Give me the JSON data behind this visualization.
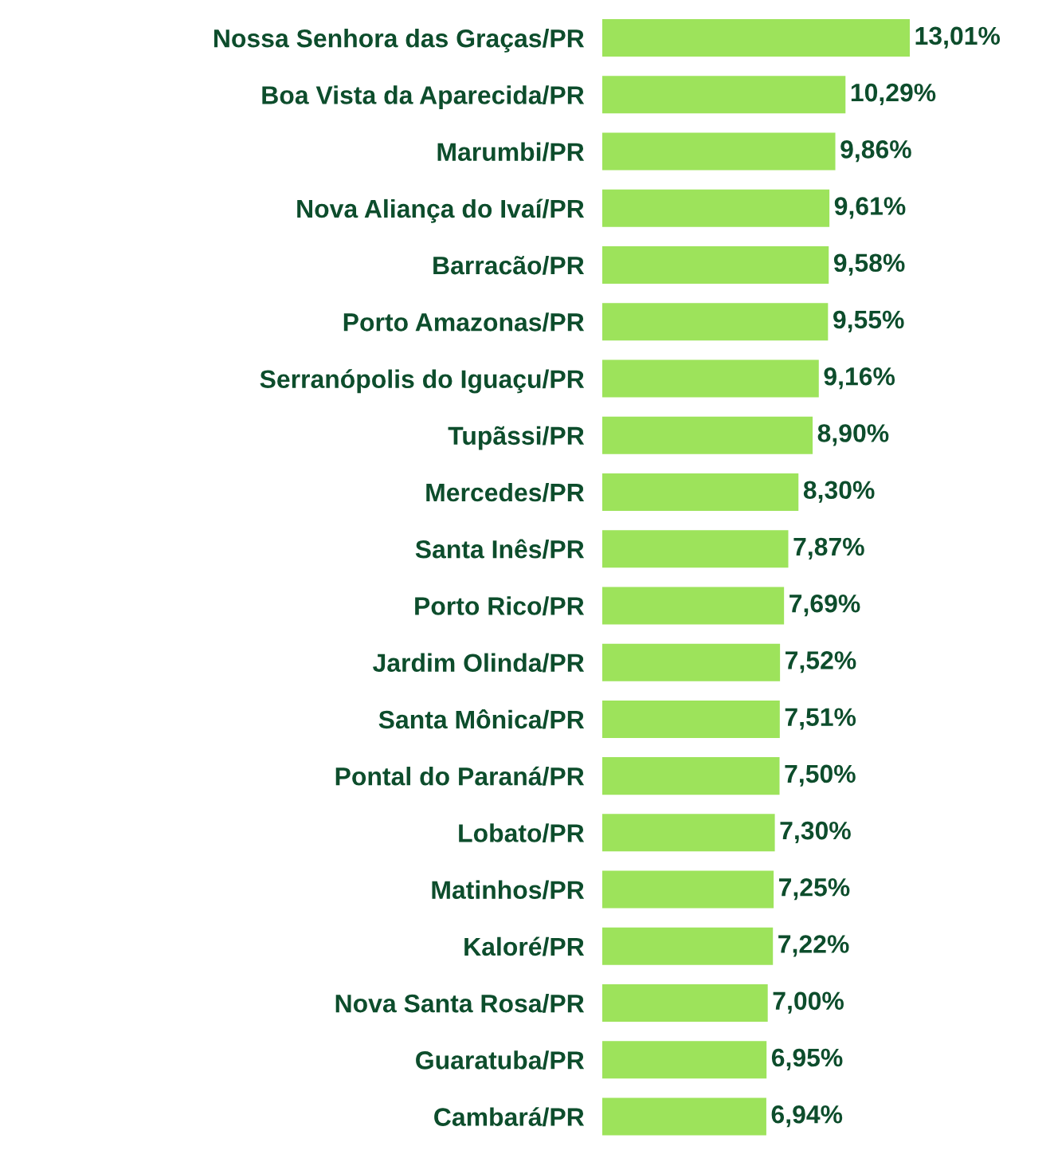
{
  "chart_data": {
    "type": "bar",
    "orientation": "horizontal",
    "relative": false,
    "categories": [
      "Nossa Senhora das Graças/PR",
      "Boa Vista da Aparecida/PR",
      "Marumbi/PR",
      "Nova Aliança do Ivaí/PR",
      "Barracão/PR",
      "Porto Amazonas/PR",
      "Serranópolis do Iguaçu/PR",
      "Tupãssi/PR",
      "Mercedes/PR",
      "Santa Inês/PR",
      "Porto Rico/PR",
      "Jardim Olinda/PR",
      "Santa Mônica/PR",
      "Pontal do Paraná/PR",
      "Lobato/PR",
      "Matinhos/PR",
      "Kaloré/PR",
      "Nova Santa Rosa/PR",
      "Guaratuba/PR",
      "Cambará/PR"
    ],
    "values": [
      13.01,
      10.29,
      9.86,
      9.61,
      9.58,
      9.55,
      9.16,
      8.9,
      8.3,
      7.87,
      7.69,
      7.52,
      7.51,
      7.5,
      7.3,
      7.25,
      7.22,
      7.0,
      6.95,
      6.94
    ],
    "value_labels": [
      "13,01%",
      "10,29%",
      "9,86%",
      "9,61%",
      "9,58%",
      "9,55%",
      "9,16%",
      "8,90%",
      "8,30%",
      "7,87%",
      "7,69%",
      "7,52%",
      "7,51%",
      "7,50%",
      "7,30%",
      "7,25%",
      "7,22%",
      "7,00%",
      "6,95%",
      "6,94%"
    ],
    "color": "#9de35b",
    "grid": false,
    "legend": false
  }
}
